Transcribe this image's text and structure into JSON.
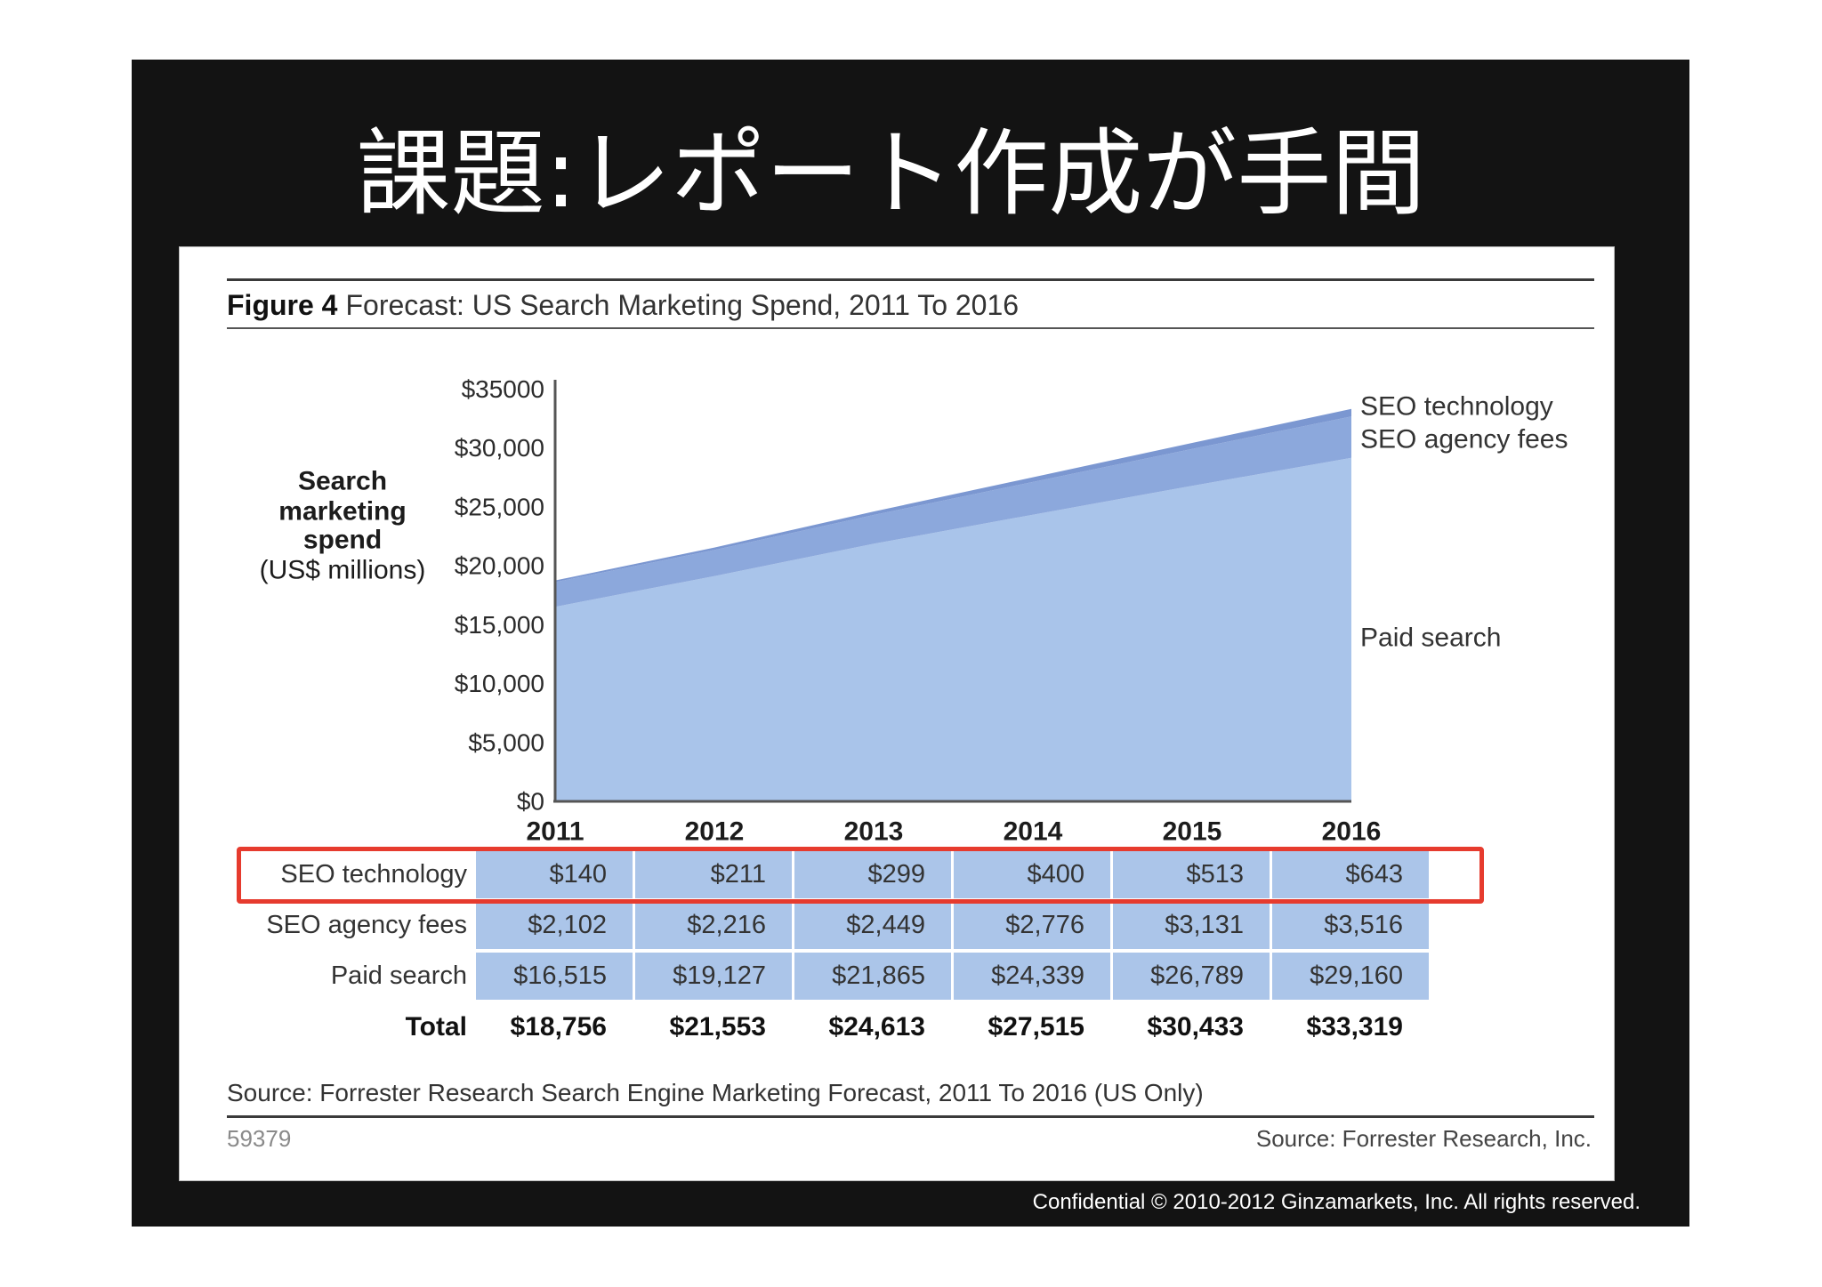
{
  "slide": {
    "title": "課題:レポート作成が手間",
    "footer": "Confidential © 2010-2012 Ginzamarkets, Inc. All rights reserved."
  },
  "figure": {
    "label": "Figure 4",
    "source": "Source: Forrester Research Search Engine Marketing Forecast, 2011 To 2016 (US Only)",
    "id": "59379",
    "credit": "Source: Forrester Research, Inc."
  },
  "colors": {
    "slide_background": "#131313",
    "highlight": "#e63b2e",
    "table_cell": "#abc5e9"
  },
  "chart_data": {
    "type": "area",
    "stacked": true,
    "title": "Forecast: US Search Marketing Spend, 2011 To 2016",
    "categories": [
      "2011",
      "2012",
      "2013",
      "2014",
      "2015",
      "2016"
    ],
    "ylabel_lines": [
      "Search",
      "marketing",
      "spend"
    ],
    "ylabel_unit": "(US$ millions)",
    "ylim": [
      0,
      35000
    ],
    "yticks": [
      0,
      5000,
      10000,
      15000,
      20000,
      25000,
      30000,
      35000
    ],
    "ytick_labels": [
      "$0",
      "$5,000",
      "$10,000",
      "$15,000",
      "$20,000",
      "$25,000",
      "$30,000",
      "$35000"
    ],
    "grid": false,
    "legend": "right",
    "series": [
      {
        "name": "Paid search",
        "values": [
          16515,
          19127,
          21865,
          24339,
          26789,
          29160
        ],
        "color": "#a9c4ea"
      },
      {
        "name": "SEO agency fees",
        "values": [
          2102,
          2216,
          2449,
          2776,
          3131,
          3516
        ],
        "color": "#8ca8dc"
      },
      {
        "name": "SEO technology",
        "values": [
          140,
          211,
          299,
          400,
          513,
          643
        ],
        "color": "#7b97d1"
      }
    ],
    "table": {
      "rows": [
        {
          "label": "SEO technology",
          "highlighted": true,
          "cells": [
            "$140",
            "$211",
            "$299",
            "$400",
            "$513",
            "$643"
          ]
        },
        {
          "label": "SEO agency fees",
          "cells": [
            "$2,102",
            "$2,216",
            "$2,449",
            "$2,776",
            "$3,131",
            "$3,516"
          ]
        },
        {
          "label": "Paid search",
          "cells": [
            "$16,515",
            "$19,127",
            "$21,865",
            "$24,339",
            "$26,789",
            "$29,160"
          ]
        }
      ],
      "total": {
        "label": "Total",
        "cells": [
          "$18,756",
          "$21,553",
          "$24,613",
          "$27,515",
          "$30,433",
          "$33,319"
        ]
      }
    }
  }
}
